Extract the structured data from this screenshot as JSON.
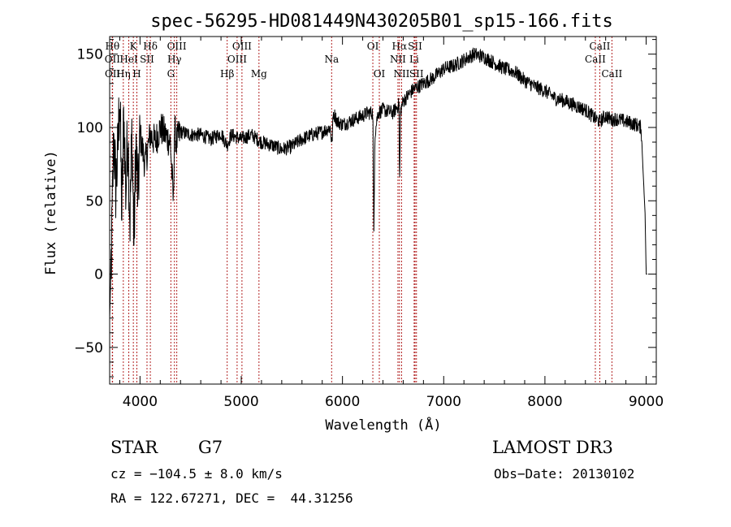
{
  "chart_data": {
    "type": "line",
    "title": "spec-56295-HD081449N430205B01_sp15-166.fits",
    "xlabel": "Wavelength (Å)",
    "ylabel": "Flux (relative)",
    "xlim": [
      3700,
      9100
    ],
    "ylim": [
      -75,
      162
    ],
    "xticks": [
      4000,
      5000,
      6000,
      7000,
      8000,
      9000
    ],
    "yticks": [
      -50,
      0,
      50,
      100,
      150
    ],
    "spectrum_anchors": {
      "x": [
        3700,
        3720,
        3740,
        3760,
        3780,
        3800,
        3820,
        3840,
        3860,
        3880,
        3900,
        3920,
        3940,
        3960,
        3980,
        4000,
        4050,
        4100,
        4150,
        4200,
        4250,
        4300,
        4330,
        4340,
        4360,
        4400,
        4500,
        4600,
        4700,
        4800,
        4860,
        4900,
        5000,
        5100,
        5200,
        5300,
        5400,
        5500,
        5600,
        5700,
        5800,
        5880,
        5895,
        5910,
        5950,
        6000,
        6100,
        6200,
        6250,
        6300,
        6310,
        6320,
        6350,
        6400,
        6500,
        6560,
        6563,
        6575,
        6600,
        6650,
        6700,
        6800,
        6900,
        7000,
        7100,
        7200,
        7300,
        7400,
        7500,
        7600,
        7700,
        7800,
        7900,
        8000,
        8100,
        8200,
        8300,
        8400,
        8498,
        8542,
        8600,
        8662,
        8700,
        8800,
        8900,
        8950,
        8990,
        9000,
        9010
      ],
      "y": [
        -30,
        20,
        95,
        60,
        80,
        125,
        40,
        110,
        55,
        100,
        35,
        98,
        20,
        90,
        50,
        95,
        75,
        95,
        90,
        100,
        95,
        90,
        48,
        100,
        90,
        97,
        95,
        95,
        92,
        96,
        88,
        95,
        92,
        95,
        90,
        88,
        85,
        87,
        92,
        95,
        97,
        100,
        88,
        110,
        104,
        102,
        105,
        108,
        110,
        110,
        28,
        95,
        110,
        112,
        110,
        116,
        55,
        112,
        118,
        122,
        126,
        130,
        134,
        140,
        142,
        146,
        150,
        148,
        144,
        140,
        138,
        132,
        128,
        125,
        120,
        118,
        115,
        112,
        106,
        104,
        108,
        105,
        106,
        104,
        102,
        100,
        40,
        0,
        0
      ]
    },
    "line_markers": [
      {
        "name": "HI",
        "wavelength": 3727,
        "row": 0,
        "label": "Hθ"
      },
      {
        "name": "OII",
        "wavelength": 3727,
        "row": 1,
        "label": "OII"
      },
      {
        "name": "OII-b",
        "wavelength": 3729,
        "row": 2,
        "label": "OII"
      },
      {
        "name": "K",
        "wavelength": 3934,
        "row": 0,
        "label": "K"
      },
      {
        "name": "HeI",
        "wavelength": 3889,
        "row": 1,
        "label": "HeI"
      },
      {
        "name": "Heta",
        "wavelength": 3835,
        "row": 2,
        "label": "Hη"
      },
      {
        "name": "H",
        "wavelength": 3969,
        "row": 2,
        "label": "H"
      },
      {
        "name": "Hdelta",
        "wavelength": 4102,
        "row": 0,
        "label": "Hδ"
      },
      {
        "name": "SII-a",
        "wavelength": 4069,
        "row": 1,
        "label": "SII"
      },
      {
        "name": "OIII-a",
        "wavelength": 4363,
        "row": 0,
        "label": "OIII"
      },
      {
        "name": "Hgamma",
        "wavelength": 4340,
        "row": 1,
        "label": "Hγ"
      },
      {
        "name": "G",
        "wavelength": 4305,
        "row": 2,
        "label": "G"
      },
      {
        "name": "Hbeta",
        "wavelength": 4861,
        "row": 2,
        "label": "Hβ"
      },
      {
        "name": "OIII-b",
        "wavelength": 5007,
        "row": 0,
        "label": "OIII"
      },
      {
        "name": "OIII-c",
        "wavelength": 4959,
        "row": 1,
        "label": "OIII"
      },
      {
        "name": "Mg",
        "wavelength": 5175,
        "row": 2,
        "label": "Mg"
      },
      {
        "name": "Na",
        "wavelength": 5893,
        "row": 1,
        "label": "Na"
      },
      {
        "name": "OI-a",
        "wavelength": 6300,
        "row": 0,
        "label": "OI"
      },
      {
        "name": "OI-b",
        "wavelength": 6364,
        "row": 2,
        "label": "OI"
      },
      {
        "name": "Halpha",
        "wavelength": 6563,
        "row": 0,
        "label": "Hα"
      },
      {
        "name": "NII-a",
        "wavelength": 6548,
        "row": 1,
        "label": "NII"
      },
      {
        "name": "NII-b",
        "wavelength": 6584,
        "row": 2,
        "label": "NII"
      },
      {
        "name": "SII-b",
        "wavelength": 6717,
        "row": 0,
        "label": "SII"
      },
      {
        "name": "Li",
        "wavelength": 6708,
        "row": 1,
        "label": "Li"
      },
      {
        "name": "SII-c",
        "wavelength": 6731,
        "row": 2,
        "label": "SII"
      },
      {
        "name": "CaII-a",
        "wavelength": 8542,
        "row": 0,
        "label": "CaII"
      },
      {
        "name": "CaII-b",
        "wavelength": 8498,
        "row": 1,
        "label": "CaII"
      },
      {
        "name": "CaII-c",
        "wavelength": 8662,
        "row": 2,
        "label": "CaII"
      }
    ],
    "colors": {
      "spectrum": "#000000",
      "markers": "#b22222",
      "axes": "#000000"
    }
  },
  "info": {
    "class_label": "STAR",
    "subclass_label": "G7",
    "survey": "LAMOST DR3",
    "cz": "cz = −104.5 ± 8.0 km/s",
    "obs_date": "Obs−Date: 20130102",
    "coords": "RA = 122.67271, DEC =  44.31256"
  }
}
